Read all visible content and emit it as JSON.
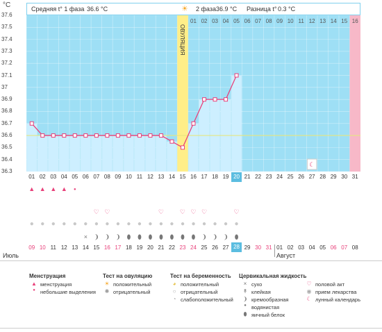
{
  "header": {
    "phase1_label": "Средняя t° 1 фаза",
    "phase1_value": "36.6 °C",
    "phase2_label": "2 фаза",
    "phase2_value": "36.9 °C",
    "diff_label": "Разница t°",
    "diff_value": "0.3 °C",
    "unit": "°C",
    "ovulation_label": "ОВУЛЯЦИЯ"
  },
  "colors": {
    "bg_plot": "#9edff5",
    "fill_area": "#cdefff",
    "line": "#e8407a",
    "coverline": "#e6e680",
    "ovulation": "#ffee88",
    "day16": "#f7b8c8",
    "highlight": "#5bbde0"
  },
  "chart_data": {
    "type": "line",
    "ylim": [
      36.3,
      37.6
    ],
    "yticks": [
      "37.6",
      "37.5",
      "37.4",
      "37.3",
      "37.2",
      "37.1",
      "37",
      "36.9",
      "36.8",
      "36.7",
      "36.6",
      "36.5",
      "36.4",
      "36.3"
    ],
    "coverline": 36.6,
    "x": [
      "01",
      "02",
      "03",
      "04",
      "05",
      "06",
      "07",
      "08",
      "09",
      "10",
      "11",
      "12",
      "13",
      "14",
      "15",
      "16",
      "17",
      "18",
      "19",
      "20",
      "21",
      "22",
      "23",
      "24",
      "25",
      "26",
      "27",
      "28",
      "29",
      "30",
      "31"
    ],
    "series": [
      {
        "values": [
          36.7,
          36.6,
          36.6,
          36.6,
          36.6,
          36.6,
          36.6,
          36.6,
          36.6,
          36.6,
          36.6,
          36.6,
          36.6,
          36.55,
          36.5,
          36.7,
          36.9,
          36.9,
          36.9,
          37.1,
          null,
          null,
          null,
          null,
          null,
          null,
          null,
          null,
          null,
          null,
          null
        ]
      }
    ],
    "phase2_days": [
      "01",
      "02",
      "03",
      "04",
      "05",
      "06",
      "07",
      "08",
      "09",
      "10",
      "11",
      "12",
      "13",
      "14",
      "15",
      "16"
    ]
  },
  "rows": {
    "menstruation": [
      "big",
      "big",
      "big",
      "big",
      "small",
      "",
      "",
      "",
      "",
      "",
      "",
      "",
      "",
      "",
      "",
      "",
      "",
      "",
      "",
      "",
      "",
      "",
      "",
      "",
      "",
      "",
      "",
      "",
      "",
      "",
      ""
    ],
    "heart": [
      "",
      "",
      "",
      "",
      "",
      "",
      "heart",
      "heart",
      "",
      "",
      "",
      "",
      "heart",
      "",
      "heart",
      "heart",
      "heart",
      "",
      "",
      "heart",
      "",
      "",
      "",
      "",
      "",
      "",
      "",
      "",
      "",
      "",
      ""
    ],
    "circle": [
      "c",
      "c",
      "c",
      "c",
      "c",
      "c",
      "c",
      "c",
      "c",
      "c",
      "c",
      "c",
      "c",
      "c",
      "c",
      "c",
      "c",
      "c",
      "c",
      "c",
      "",
      "",
      "",
      "",
      "",
      "",
      "",
      "",
      "",
      "",
      ""
    ],
    "fluid": [
      "",
      "",
      "",
      "",
      "",
      "x",
      "e",
      "e",
      "e",
      "w",
      "w",
      "w",
      "w",
      "w",
      "w",
      "w",
      "e",
      "e",
      "e",
      "w",
      "",
      "",
      "",
      "",
      "",
      "",
      "",
      "",
      "",
      "",
      ""
    ],
    "moon_day": "27"
  },
  "dates": {
    "values": [
      "09",
      "10",
      "11",
      "12",
      "13",
      "14",
      "15",
      "16",
      "17",
      "18",
      "19",
      "20",
      "21",
      "22",
      "23",
      "24",
      "25",
      "26",
      "27",
      "28",
      "29",
      "30",
      "31",
      "01",
      "02",
      "03",
      "04",
      "05",
      "06",
      "07",
      "08"
    ],
    "red": [
      "09",
      "10",
      "16",
      "17",
      "23",
      "24",
      "30",
      "31",
      "06",
      "07"
    ],
    "highlight": "28",
    "month1": "Июль",
    "month2": "Август"
  },
  "x_highlight": "20",
  "legend": {
    "menstr_title": "Менструация",
    "menstr_items": [
      "менструация",
      "небольшие выделения"
    ],
    "ovtest_title": "Тест на овуляцию",
    "ovtest_items": [
      "положительный",
      "отрицательный"
    ],
    "preg_title": "Тест на беременность",
    "preg_items": [
      "положительный",
      "отрицательный",
      "слабоположительный"
    ],
    "fluid_title": "Цервикальная жидкость",
    "fluid_items": [
      "сухо",
      "клейкая",
      "кремообразная",
      "водянистая",
      "яичный белок"
    ],
    "other_items": [
      "половой акт",
      "прием лекарства",
      "лунный календарь"
    ]
  }
}
